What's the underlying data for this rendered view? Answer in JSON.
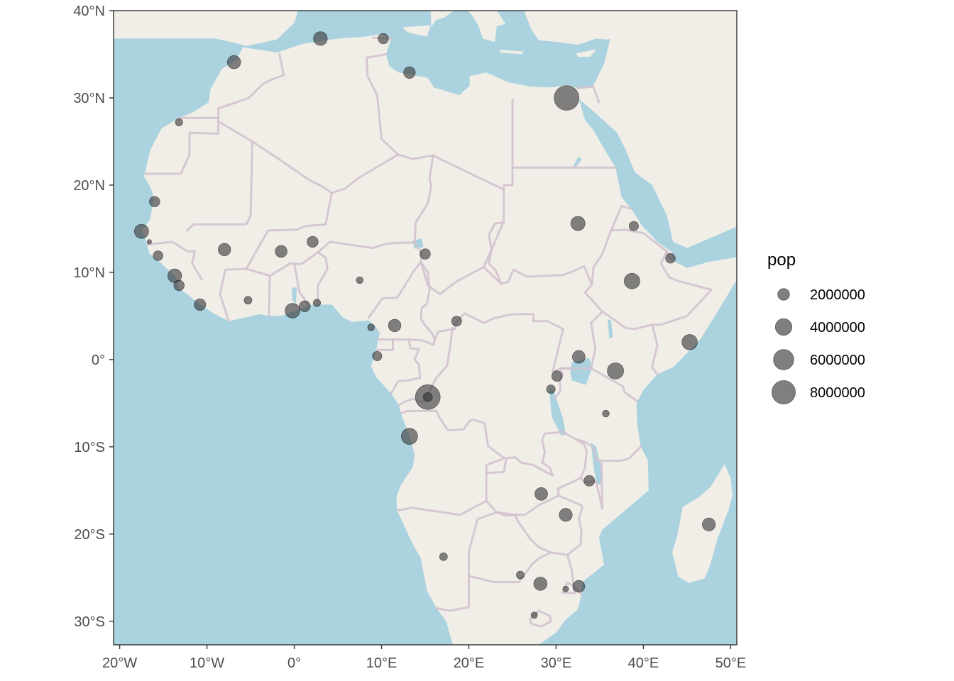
{
  "chart_data": {
    "type": "scatter",
    "title": "",
    "xlabel": "",
    "ylabel": "",
    "xlim": [
      -20.7,
      50.7
    ],
    "ylim": [
      -32.7,
      40.0
    ],
    "x_ticks": [
      {
        "value": -20,
        "label": "20°W"
      },
      {
        "value": -10,
        "label": "10°W"
      },
      {
        "value": 0,
        "label": "0°"
      },
      {
        "value": 10,
        "label": "10°E"
      },
      {
        "value": 20,
        "label": "20°E"
      },
      {
        "value": 30,
        "label": "30°E"
      },
      {
        "value": 40,
        "label": "40°E"
      },
      {
        "value": 50,
        "label": "50°E"
      }
    ],
    "y_ticks": [
      {
        "value": 40,
        "label": "40°N"
      },
      {
        "value": 30,
        "label": "30°N"
      },
      {
        "value": 20,
        "label": "20°N"
      },
      {
        "value": 10,
        "label": "10°N"
      },
      {
        "value": 0,
        "label": "0°"
      },
      {
        "value": -10,
        "label": "10°S"
      },
      {
        "value": -20,
        "label": "20°S"
      },
      {
        "value": -30,
        "label": "30°S"
      }
    ],
    "legend": {
      "title": "pop",
      "position": "right",
      "entries": [
        {
          "value": 2000000,
          "label": "2000000"
        },
        {
          "value": 4000000,
          "label": "4000000"
        },
        {
          "value": 6000000,
          "label": "6000000"
        },
        {
          "value": 8000000,
          "label": "8000000"
        }
      ]
    },
    "points": [
      {
        "lon": 31.2,
        "lat": 30.0,
        "pop": 9000000
      },
      {
        "lon": 15.3,
        "lat": -4.3,
        "pop": 9000000
      },
      {
        "lon": 15.3,
        "lat": -4.3,
        "pop": 1200000
      },
      {
        "lon": 3.0,
        "lat": 36.8,
        "pop": 2800000
      },
      {
        "lon": 10.2,
        "lat": 36.8,
        "pop": 1600000
      },
      {
        "lon": -6.9,
        "lat": 34.1,
        "pop": 2600000
      },
      {
        "lon": 13.2,
        "lat": 32.9,
        "pop": 2000000
      },
      {
        "lon": -13.2,
        "lat": 27.2,
        "pop": 800000
      },
      {
        "lon": -16.0,
        "lat": 18.1,
        "pop": 1600000
      },
      {
        "lon": -17.5,
        "lat": 14.7,
        "pop": 3000000
      },
      {
        "lon": -16.6,
        "lat": 13.5,
        "pop": 300000
      },
      {
        "lon": -15.6,
        "lat": 11.9,
        "pop": 1400000
      },
      {
        "lon": -13.7,
        "lat": 9.6,
        "pop": 2800000
      },
      {
        "lon": -13.2,
        "lat": 8.5,
        "pop": 1600000
      },
      {
        "lon": -10.8,
        "lat": 6.3,
        "pop": 2000000
      },
      {
        "lon": -8.0,
        "lat": 12.6,
        "pop": 2300000
      },
      {
        "lon": -5.3,
        "lat": 6.8,
        "pop": 900000
      },
      {
        "lon": -1.5,
        "lat": 12.4,
        "pop": 2100000
      },
      {
        "lon": -0.2,
        "lat": 5.6,
        "pop": 3200000
      },
      {
        "lon": 1.2,
        "lat": 6.1,
        "pop": 1800000
      },
      {
        "lon": 2.6,
        "lat": 6.5,
        "pop": 800000
      },
      {
        "lon": 2.1,
        "lat": 13.5,
        "pop": 1800000
      },
      {
        "lon": 7.5,
        "lat": 9.1,
        "pop": 700000
      },
      {
        "lon": 8.8,
        "lat": 3.7,
        "pop": 700000
      },
      {
        "lon": 9.5,
        "lat": 0.4,
        "pop": 1300000
      },
      {
        "lon": 11.5,
        "lat": 3.9,
        "pop": 2300000
      },
      {
        "lon": 15.0,
        "lat": 12.1,
        "pop": 1600000
      },
      {
        "lon": 18.6,
        "lat": 4.4,
        "pop": 1500000
      },
      {
        "lon": 13.2,
        "lat": -8.8,
        "pop": 3900000
      },
      {
        "lon": 32.5,
        "lat": 15.6,
        "pop": 3000000
      },
      {
        "lon": 38.9,
        "lat": 15.3,
        "pop": 1300000
      },
      {
        "lon": 43.1,
        "lat": 11.6,
        "pop": 1400000
      },
      {
        "lon": 38.7,
        "lat": 9.0,
        "pop": 3600000
      },
      {
        "lon": 45.3,
        "lat": 2.0,
        "pop": 3500000
      },
      {
        "lon": 32.6,
        "lat": 0.3,
        "pop": 2400000
      },
      {
        "lon": 36.8,
        "lat": -1.3,
        "pop": 3900000
      },
      {
        "lon": 30.1,
        "lat": -1.9,
        "pop": 1600000
      },
      {
        "lon": 29.4,
        "lat": -3.4,
        "pop": 1100000
      },
      {
        "lon": 35.7,
        "lat": -6.2,
        "pop": 700000
      },
      {
        "lon": 33.8,
        "lat": -13.9,
        "pop": 1700000
      },
      {
        "lon": 28.3,
        "lat": -15.4,
        "pop": 2400000
      },
      {
        "lon": 31.1,
        "lat": -17.8,
        "pop": 2500000
      },
      {
        "lon": 47.5,
        "lat": -18.9,
        "pop": 2500000
      },
      {
        "lon": 17.1,
        "lat": -22.6,
        "pop": 900000
      },
      {
        "lon": 25.9,
        "lat": -24.7,
        "pop": 900000
      },
      {
        "lon": 28.2,
        "lat": -25.7,
        "pop": 2600000
      },
      {
        "lon": 32.6,
        "lat": -26.0,
        "pop": 2100000
      },
      {
        "lon": 31.1,
        "lat": -26.3,
        "pop": 500000
      },
      {
        "lon": 27.5,
        "lat": -29.3,
        "pop": 600000
      }
    ]
  },
  "colors": {
    "ocean": "#abd3df",
    "land": "#f1eee8",
    "border": "#d3c2cf",
    "point_fill": "#333333",
    "legend_fill": "#7f7f7f",
    "axis": "#333333",
    "tick_text": "#4d4d4d"
  }
}
